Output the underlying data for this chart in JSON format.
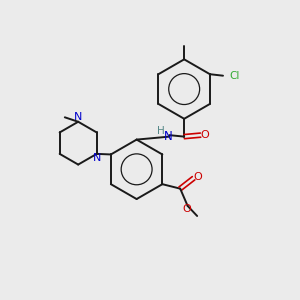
{
  "background_color": "#ebebeb",
  "bond_color": "#1a1a1a",
  "N_color": "#0000cc",
  "O_color": "#cc0000",
  "Cl_color": "#33aa33",
  "H_color": "#558888",
  "figsize": [
    3.0,
    3.0
  ],
  "dpi": 100,
  "xlim": [
    0,
    10
  ],
  "ylim": [
    0,
    10
  ]
}
